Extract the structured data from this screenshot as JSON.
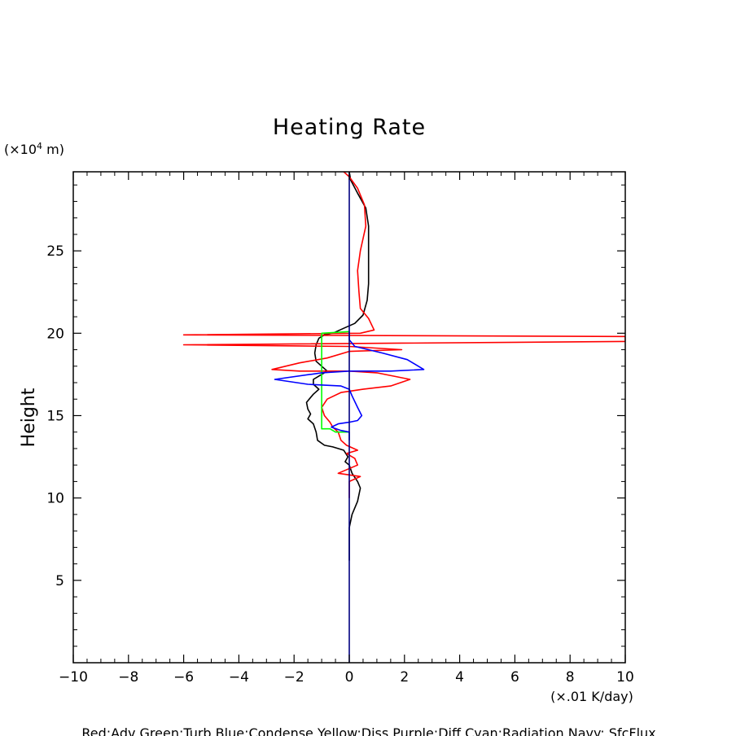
{
  "chart_data": {
    "type": "line",
    "title": "Heating Rate",
    "ylabel": "Height",
    "yunit_prefix": "(×10",
    "yunit_exp": "4",
    "yunit_suffix": " m)",
    "xunit": "(×.01 K/day)",
    "caption": "Red:Adv  Green:Turb  Blue:Condense  Yellow:Diss  Purple:Diff  Cyan:Radiation  Navy: SfcFlux",
    "xlim": [
      -10,
      10
    ],
    "ylim": [
      0,
      29.8
    ],
    "xticks": [
      -10,
      -8,
      -6,
      -4,
      -2,
      0,
      2,
      4,
      6,
      8,
      10
    ],
    "xtick_labels": [
      "−10",
      "−8",
      "−6",
      "−4",
      "−2",
      "0",
      "2",
      "4",
      "6",
      "8",
      "10"
    ],
    "yticks": [
      5,
      10,
      15,
      20,
      25
    ],
    "ytick_labels": [
      "5",
      "10",
      "15",
      "20",
      "25"
    ],
    "series": [
      {
        "color": "#000000",
        "points": [
          [
            0.0,
            29.8
          ],
          [
            0.05,
            29.3
          ],
          [
            0.3,
            28.5
          ],
          [
            0.6,
            27.6
          ],
          [
            0.7,
            26.5
          ],
          [
            0.7,
            24.5
          ],
          [
            0.7,
            23.0
          ],
          [
            0.65,
            22.0
          ],
          [
            0.5,
            21.1
          ],
          [
            0.2,
            20.6
          ],
          [
            -0.2,
            20.3
          ],
          [
            -0.6,
            20.0
          ],
          [
            -0.9,
            19.9
          ],
          [
            -1.1,
            19.7
          ],
          [
            -1.2,
            19.3
          ],
          [
            -1.25,
            18.8
          ],
          [
            -1.2,
            18.3
          ],
          [
            -1.0,
            18.0
          ],
          [
            -0.8,
            17.7
          ],
          [
            -1.1,
            17.4
          ],
          [
            -1.3,
            17.2
          ],
          [
            -1.3,
            16.9
          ],
          [
            -1.1,
            16.6
          ],
          [
            -1.3,
            16.3
          ],
          [
            -1.4,
            16.1
          ],
          [
            -1.55,
            15.8
          ],
          [
            -1.5,
            15.4
          ],
          [
            -1.4,
            15.1
          ],
          [
            -1.5,
            14.8
          ],
          [
            -1.3,
            14.5
          ],
          [
            -1.2,
            14.0
          ],
          [
            -1.15,
            13.5
          ],
          [
            -0.9,
            13.2
          ],
          [
            -0.6,
            13.1
          ],
          [
            -0.2,
            12.9
          ],
          [
            -0.05,
            12.5
          ],
          [
            -0.15,
            12.2
          ],
          [
            0.0,
            12.0
          ],
          [
            0.1,
            11.5
          ],
          [
            0.3,
            11.0
          ],
          [
            0.4,
            10.6
          ],
          [
            0.3,
            9.8
          ],
          [
            0.1,
            9.0
          ],
          [
            0.0,
            8.2
          ],
          [
            0.0,
            7.0
          ],
          [
            0.0,
            6.2
          ]
        ]
      },
      {
        "color": "#ff0000",
        "points": [
          [
            -0.2,
            29.8
          ],
          [
            0.0,
            29.5
          ],
          [
            0.3,
            28.8
          ],
          [
            0.55,
            27.8
          ],
          [
            0.6,
            26.5
          ],
          [
            0.4,
            25.0
          ],
          [
            0.3,
            23.8
          ],
          [
            0.35,
            22.5
          ],
          [
            0.4,
            21.5
          ],
          [
            0.7,
            20.9
          ],
          [
            0.9,
            20.2
          ],
          [
            0.4,
            20.0
          ],
          [
            -6.0,
            19.9
          ],
          [
            10.0,
            19.8
          ],
          [
            10.0,
            19.5
          ],
          [
            -6.0,
            19.3
          ],
          [
            0.0,
            19.2
          ],
          [
            1.9,
            19.0
          ],
          [
            0.0,
            18.9
          ],
          [
            -0.8,
            18.5
          ],
          [
            -1.8,
            18.2
          ],
          [
            -2.8,
            17.8
          ],
          [
            -1.8,
            17.7
          ],
          [
            0.0,
            17.7
          ],
          [
            1.0,
            17.6
          ],
          [
            2.2,
            17.2
          ],
          [
            1.5,
            16.8
          ],
          [
            0.5,
            16.6
          ],
          [
            -0.3,
            16.4
          ],
          [
            -0.8,
            16.0
          ],
          [
            -1.0,
            15.5
          ],
          [
            -0.9,
            15.0
          ],
          [
            -0.7,
            14.6
          ],
          [
            -0.6,
            14.3
          ],
          [
            -0.4,
            14.0
          ],
          [
            -0.3,
            13.5
          ],
          [
            -0.1,
            13.2
          ],
          [
            0.3,
            12.9
          ],
          [
            -0.1,
            12.7
          ],
          [
            0.2,
            12.4
          ],
          [
            0.3,
            12.0
          ],
          [
            -0.4,
            11.5
          ],
          [
            0.4,
            11.3
          ],
          [
            0.0,
            11.0
          ],
          [
            0.0,
            10.0
          ]
        ]
      },
      {
        "color": "#00ff00",
        "points": [
          [
            0.0,
            20.1
          ],
          [
            -1.0,
            20.0
          ],
          [
            -1.0,
            14.2
          ],
          [
            -0.7,
            14.2
          ],
          [
            -0.5,
            14.0
          ],
          [
            0.0,
            14.0
          ]
        ]
      },
      {
        "color": "#0000ff",
        "points": [
          [
            0.0,
            20.1
          ],
          [
            0.0,
            19.6
          ],
          [
            0.2,
            19.2
          ],
          [
            1.2,
            18.8
          ],
          [
            2.1,
            18.4
          ],
          [
            2.7,
            17.8
          ],
          [
            1.5,
            17.7
          ],
          [
            0.0,
            17.7
          ],
          [
            -1.0,
            17.6
          ],
          [
            -2.7,
            17.2
          ],
          [
            -1.5,
            16.9
          ],
          [
            -0.3,
            16.8
          ],
          [
            0.0,
            16.6
          ],
          [
            0.1,
            16.2
          ],
          [
            0.3,
            15.5
          ],
          [
            0.45,
            15.0
          ],
          [
            0.3,
            14.7
          ],
          [
            0.0,
            14.6
          ],
          [
            -0.4,
            14.5
          ],
          [
            -0.65,
            14.3
          ],
          [
            -0.3,
            14.1
          ],
          [
            0.0,
            14.0
          ],
          [
            0.0,
            13.5
          ]
        ]
      },
      {
        "color": "#000080",
        "points": [
          [
            0.0,
            0.0
          ],
          [
            0.0,
            29.8
          ]
        ]
      }
    ]
  }
}
